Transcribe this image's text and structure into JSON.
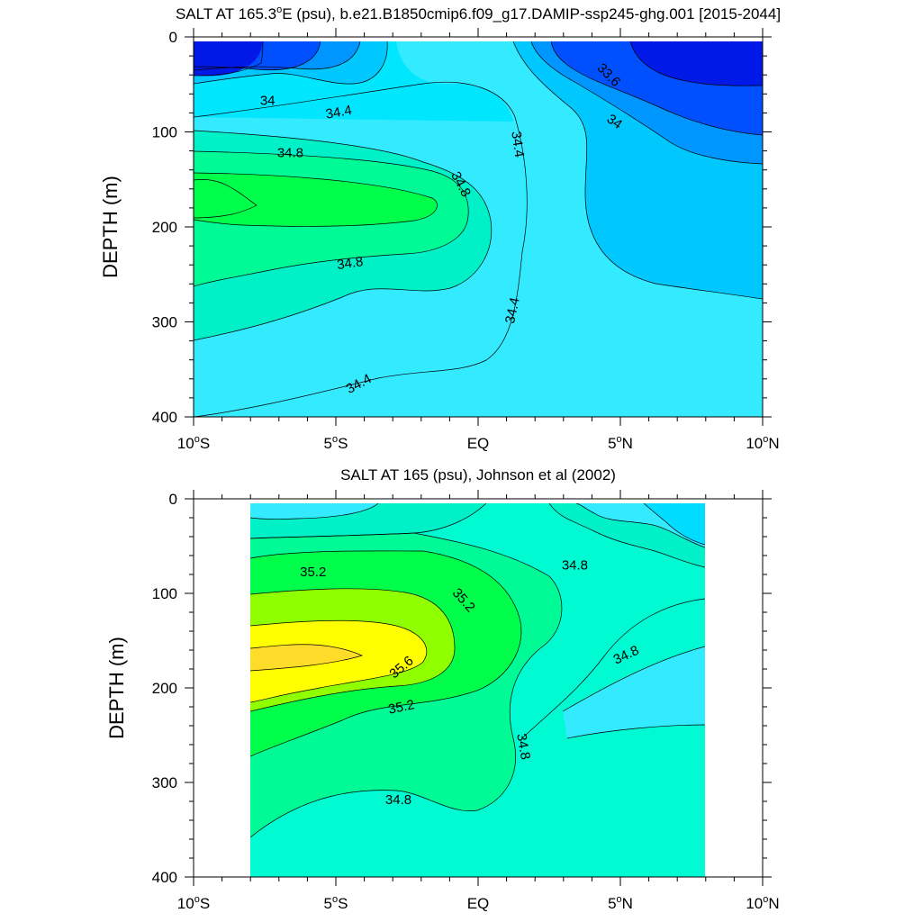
{
  "chart_data": [
    {
      "type": "contour",
      "title_main": "SALT AT 165.3",
      "title_sup": "o",
      "title_rest": "E (psu), b.e21.B1850cmip6.f09_g17.DAMIP-ssp245-ghg.001 [2015-2044]",
      "ylabel": "DEPTH (m)",
      "xlim": [
        -10,
        10
      ],
      "ylim": [
        400,
        0
      ],
      "x_ticks": [
        {
          "value": -10,
          "main": "10",
          "sup": "o",
          "suffix": "S"
        },
        {
          "value": -5,
          "main": "5",
          "sup": "o",
          "suffix": "S"
        },
        {
          "value": 0,
          "main": "EQ",
          "sup": "",
          "suffix": ""
        },
        {
          "value": 5,
          "main": "5",
          "sup": "o",
          "suffix": "N"
        },
        {
          "value": 10,
          "main": "10",
          "sup": "o",
          "suffix": "N"
        }
      ],
      "y_ticks": [
        "0",
        "100",
        "200",
        "300",
        "400"
      ],
      "contour_labels": [
        {
          "text": "33.6",
          "lat": 4.6,
          "depth": 40,
          "angle": 45
        },
        {
          "text": "34",
          "lat": -7.4,
          "depth": 67,
          "angle": 0
        },
        {
          "text": "34.4",
          "lat": -4.9,
          "depth": 79,
          "angle": -10
        },
        {
          "text": "34",
          "lat": 4.8,
          "depth": 89,
          "angle": 35
        },
        {
          "text": "34.4",
          "lat": 1.4,
          "depth": 113,
          "angle": 82
        },
        {
          "text": "34.8",
          "lat": -6.6,
          "depth": 122,
          "angle": 0
        },
        {
          "text": "34.8",
          "lat": -0.6,
          "depth": 155,
          "angle": 62
        },
        {
          "text": "34.8",
          "lat": -4.5,
          "depth": 238,
          "angle": -8
        },
        {
          "text": "34.4",
          "lat": 1.2,
          "depth": 288,
          "angle": -78
        },
        {
          "text": "34.4",
          "lat": -4.2,
          "depth": 365,
          "angle": -28
        }
      ],
      "colors": [
        "#0019e6",
        "#0050ff",
        "#0096ff",
        "#00c8ff",
        "#00e6ff",
        "#33eaff",
        "#00f0c8",
        "#00fa96",
        "#00ff4b",
        "#90ff00",
        "#ffff00",
        "#ffdb2a"
      ]
    },
    {
      "type": "contour",
      "title_main": "SALT AT 165 (psu), Johnson et al (2002)",
      "title_sup": "",
      "title_rest": "",
      "ylabel": "DEPTH (m)",
      "xlim": [
        -10,
        10
      ],
      "ylim": [
        400,
        0
      ],
      "x_ticks": [
        {
          "value": -10,
          "main": "10",
          "sup": "o",
          "suffix": "S"
        },
        {
          "value": -5,
          "main": "5",
          "sup": "o",
          "suffix": "S"
        },
        {
          "value": 0,
          "main": "EQ",
          "sup": "",
          "suffix": ""
        },
        {
          "value": 5,
          "main": "5",
          "sup": "o",
          "suffix": "N"
        },
        {
          "value": 10,
          "main": "10",
          "sup": "o",
          "suffix": "N"
        }
      ],
      "y_ticks": [
        "0",
        "100",
        "200",
        "300",
        "400"
      ],
      "contour_labels": [
        {
          "text": "35.2",
          "lat": -5.8,
          "depth": 77,
          "angle": 0
        },
        {
          "text": "35.2",
          "lat": -0.5,
          "depth": 107,
          "angle": 48
        },
        {
          "text": "34.8",
          "lat": 3.4,
          "depth": 70,
          "angle": 0
        },
        {
          "text": "35.6",
          "lat": -2.7,
          "depth": 178,
          "angle": -40
        },
        {
          "text": "34.8",
          "lat": 5.2,
          "depth": 165,
          "angle": -25
        },
        {
          "text": "35.2",
          "lat": -2.7,
          "depth": 220,
          "angle": -12
        },
        {
          "text": "34.8",
          "lat": 1.6,
          "depth": 262,
          "angle": 80
        },
        {
          "text": "34.8",
          "lat": -2.8,
          "depth": 318,
          "angle": 0
        }
      ]
    }
  ]
}
